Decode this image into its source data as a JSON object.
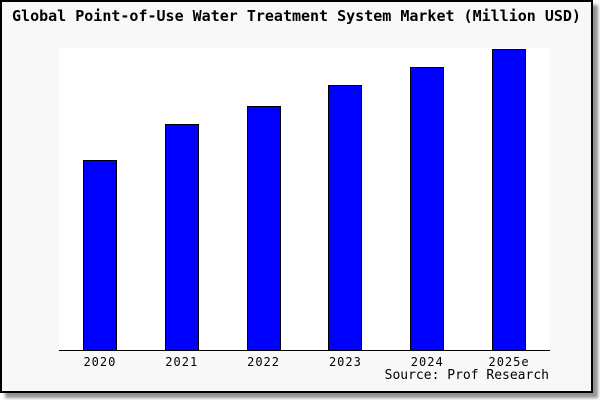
{
  "source_label": "Source: Prof Research",
  "colors": {
    "bar_fill": "#0000ff",
    "bar_border": "#000000",
    "card_background": "#f8f8f8",
    "plot_background": "#ffffff",
    "frame_border": "#000000",
    "text": "#000000"
  },
  "chart_data": {
    "type": "bar",
    "title": "Global Point-of-Use Water Treatment System Market (Million USD)",
    "categories": [
      "2020",
      "2021",
      "2022",
      "2023",
      "2024",
      "2025e"
    ],
    "values": [
      63,
      75,
      81,
      88,
      94,
      100
    ],
    "values_note": "relative bar heights in % of tallest bar; y-axis has no tick labels in the image",
    "xlabel": "",
    "ylabel": "",
    "ylim": [
      0,
      100
    ],
    "grid": false,
    "legend": false,
    "source": "Source: Prof Research"
  }
}
